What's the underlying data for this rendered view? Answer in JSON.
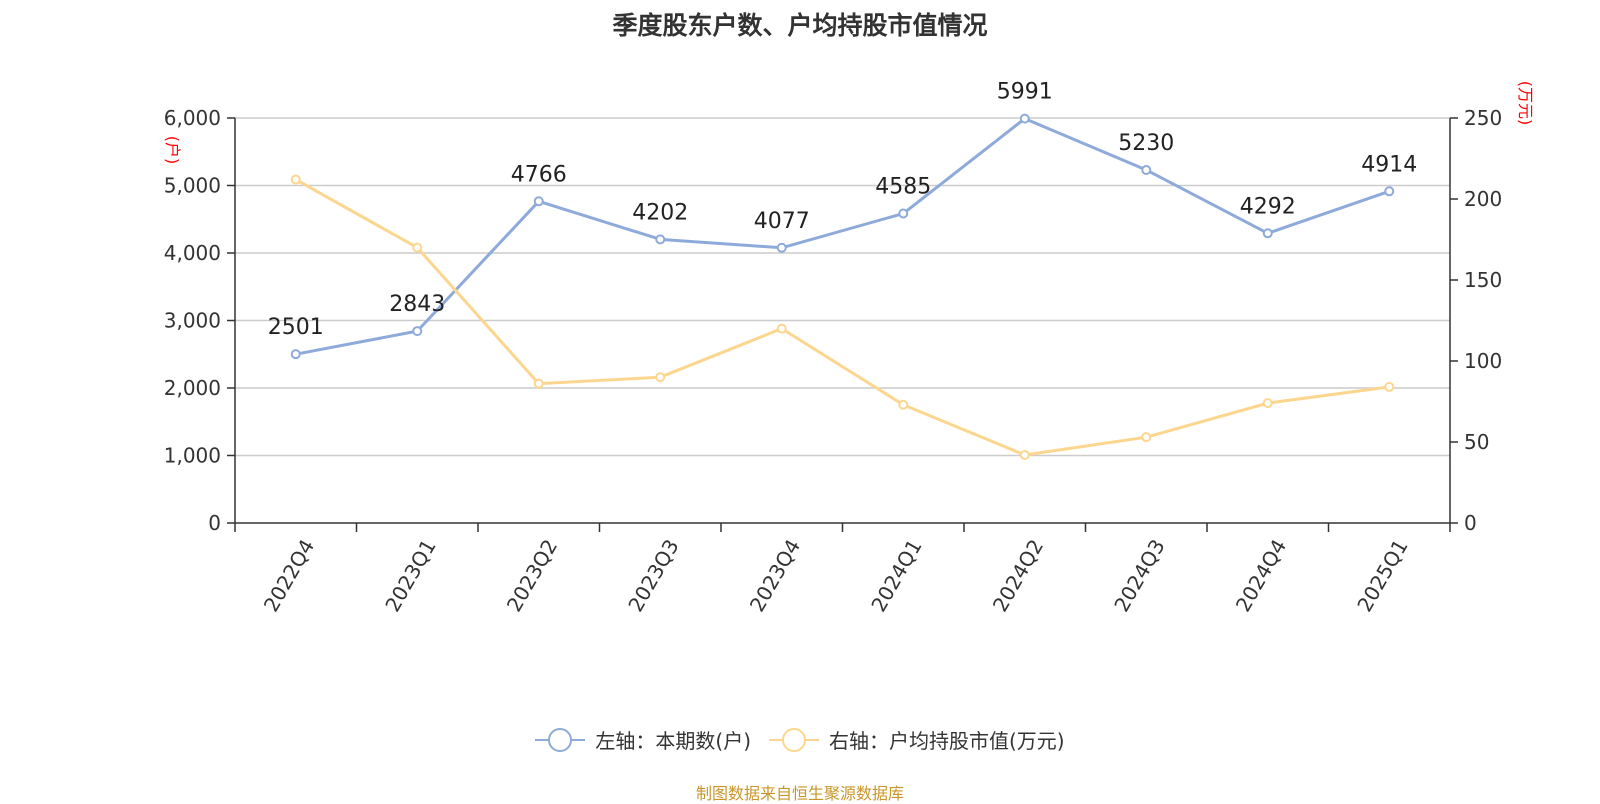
{
  "title": "季度股东户数、户均持股市值情况",
  "source": "制图数据来自恒生聚源数据库",
  "chart_data": {
    "type": "line",
    "categories": [
      "2022Q4",
      "2023Q1",
      "2023Q2",
      "2023Q3",
      "2023Q4",
      "2024Q1",
      "2024Q2",
      "2024Q3",
      "2024Q4",
      "2025Q1"
    ],
    "left_axis": {
      "unit": "(户)",
      "ylim": [
        0,
        6000
      ],
      "ticks": [
        "0",
        "1,000",
        "2,000",
        "3,000",
        "4,000",
        "5,000",
        "6,000"
      ],
      "tick_values": [
        0,
        1000,
        2000,
        3000,
        4000,
        5000,
        6000
      ]
    },
    "right_axis": {
      "unit": "(万元)",
      "ylim": [
        0,
        250
      ],
      "ticks": [
        "0",
        "50",
        "100",
        "150",
        "200",
        "250"
      ],
      "tick_values": [
        0,
        50,
        100,
        150,
        200,
        250
      ]
    },
    "series": [
      {
        "name": "左轴：本期数(户)",
        "axis": "left",
        "color": "#8eaadb",
        "values": [
          2501,
          2843,
          4766,
          4202,
          4077,
          4585,
          5991,
          5230,
          4292,
          4914
        ],
        "labels": [
          "2501",
          "2843",
          "4766",
          "4202",
          "4077",
          "4585",
          "5991",
          "5230",
          "4292",
          "4914"
        ]
      },
      {
        "name": "右轴：户均持股市值(万元)",
        "axis": "right",
        "color": "#fcd68e",
        "values": [
          212,
          170,
          86,
          90,
          120,
          73,
          42,
          53,
          74,
          84
        ]
      }
    ],
    "grid": true,
    "legend_position": "bottom"
  }
}
